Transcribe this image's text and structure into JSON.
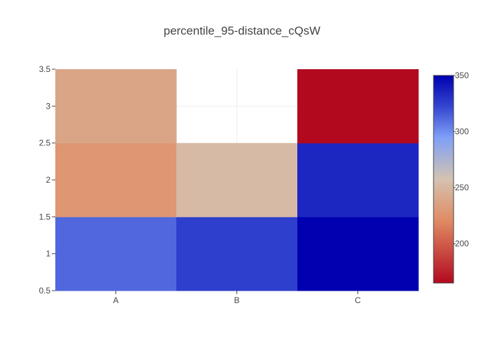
{
  "chart_data": {
    "type": "heatmap",
    "title": "percentile_95-distance_cQsW",
    "x_categories": [
      "A",
      "B",
      "C"
    ],
    "y_values": [
      1,
      2,
      3
    ],
    "y_ticks": [
      "0.5",
      "1",
      "1.5",
      "2",
      "2.5",
      "3",
      "3.5"
    ],
    "ylim": [
      0.5,
      3.5
    ],
    "z": [
      [
        312,
        325,
        350
      ],
      [
        228,
        252,
        335
      ],
      [
        238,
        null,
        165
      ]
    ],
    "colorscale": {
      "range": [
        165,
        350
      ],
      "ticks": [
        "200",
        "250",
        "300",
        "350"
      ],
      "stops": [
        [
          0.0,
          "#b2091f"
        ],
        [
          0.3,
          "#e08b63"
        ],
        [
          0.5,
          "#d4c2b0"
        ],
        [
          0.7,
          "#7fa0f7"
        ],
        [
          0.85,
          "#3446d0"
        ],
        [
          1.0,
          "#0000b0"
        ]
      ]
    },
    "grid": true,
    "colorbar_position": "right"
  }
}
